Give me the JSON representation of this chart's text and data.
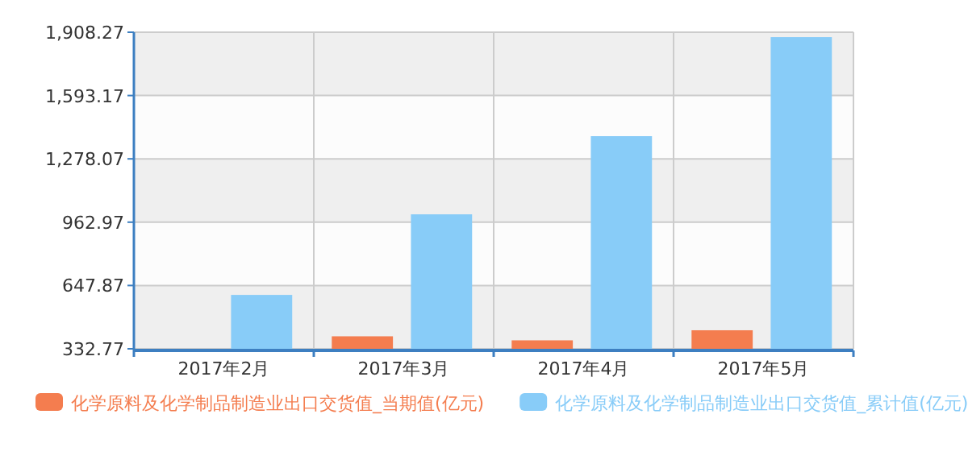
{
  "chart_data": {
    "type": "bar",
    "categories": [
      "2017年2月",
      "2017年3月",
      "2017年4月",
      "2017年5月"
    ],
    "series": [
      {
        "name": "化学原料及化学制品制造业出口交货值_当期值(亿元)",
        "color": "#f47d4f",
        "values": [
          null,
          395,
          375,
          425
        ]
      },
      {
        "name": "化学原料及化学制品制造业出口交货值_累计值(亿元)",
        "color": "#88ccf8",
        "values": [
          601,
          1002,
          1391,
          1884
        ]
      }
    ],
    "ylim": [
      332.77,
      1908.27
    ],
    "yticks": [
      332.77,
      647.87,
      962.97,
      {
        "value": 1278.07,
        "label": "1,278.07"
      },
      {
        "value": 1593.17,
        "label": "1,593.17"
      },
      {
        "value": 1908.27,
        "label": "1,908.27"
      }
    ],
    "grid": true,
    "legend": "bottom"
  }
}
